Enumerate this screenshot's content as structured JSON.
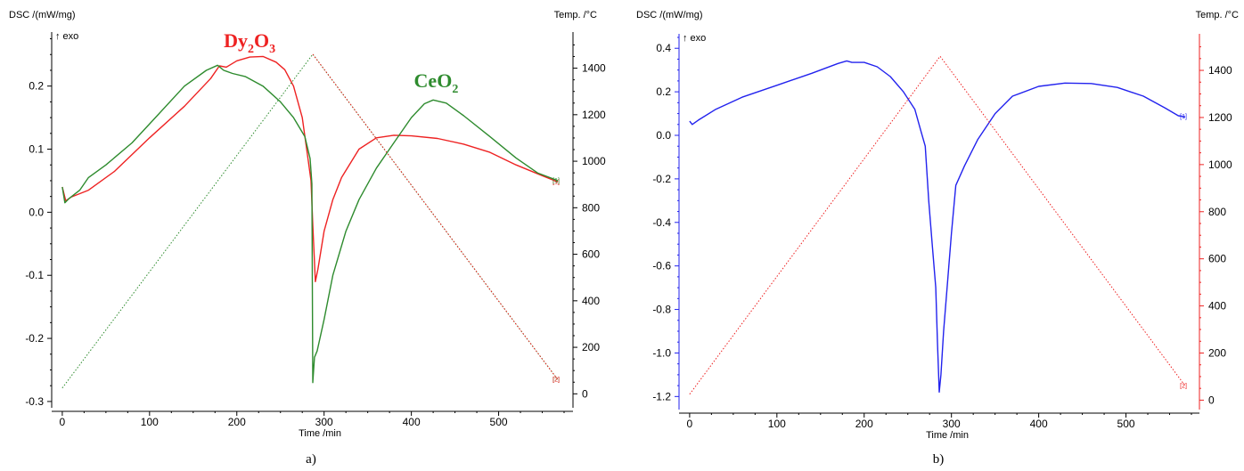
{
  "chart_data": [
    {
      "type": "line",
      "panel_label": "a)",
      "ylabel": "DSC /(mW/mg)",
      "exo_label": "↑ exo",
      "y2label": "Temp. /°C",
      "xlabel": "Time /min",
      "xlim": [
        -5,
        575
      ],
      "ylim": [
        -0.31,
        0.28
      ],
      "y2lim": [
        -60,
        1540
      ],
      "x_ticks": [
        0,
        100,
        200,
        300,
        400,
        500
      ],
      "y_ticks": [
        -0.3,
        -0.2,
        -0.1,
        0.0,
        0.1,
        0.2
      ],
      "y_tick_labels": [
        "-0.3",
        "-0.2",
        "-0.1",
        "0.0",
        "0.1",
        "0.2"
      ],
      "y2_ticks": [
        0,
        200,
        400,
        600,
        800,
        1000,
        1200,
        1400
      ],
      "grid": false,
      "annotations": [
        {
          "base": "Dy",
          "sub1": "2",
          "mid": "O",
          "sub2": "3",
          "color": "#ee2222",
          "x": 185,
          "y": 0.262
        },
        {
          "base": "CeO",
          "sub1": "2",
          "mid": "",
          "sub2": "",
          "color": "#2e8b2e",
          "x": 403,
          "y": 0.198
        }
      ],
      "series": [
        {
          "axis": "y",
          "color": "#ee2222",
          "style": "solid",
          "end_marker": "[1]",
          "points": [
            [
              0,
              0.04
            ],
            [
              4,
              0.018
            ],
            [
              10,
              0.024
            ],
            [
              30,
              0.035
            ],
            [
              60,
              0.065
            ],
            [
              100,
              0.118
            ],
            [
              140,
              0.168
            ],
            [
              170,
              0.212
            ],
            [
              180,
              0.232
            ],
            [
              188,
              0.23
            ],
            [
              200,
              0.24
            ],
            [
              215,
              0.246
            ],
            [
              230,
              0.247
            ],
            [
              245,
              0.238
            ],
            [
              255,
              0.226
            ],
            [
              265,
              0.2
            ],
            [
              275,
              0.15
            ],
            [
              282,
              0.08
            ],
            [
              285,
              0.05
            ],
            [
              287,
              -0.02
            ],
            [
              290,
              -0.11
            ],
            [
              293,
              -0.09
            ],
            [
              300,
              -0.03
            ],
            [
              310,
              0.02
            ],
            [
              320,
              0.055
            ],
            [
              340,
              0.1
            ],
            [
              360,
              0.118
            ],
            [
              380,
              0.122
            ],
            [
              400,
              0.121
            ],
            [
              430,
              0.117
            ],
            [
              460,
              0.108
            ],
            [
              490,
              0.095
            ],
            [
              520,
              0.075
            ],
            [
              550,
              0.058
            ],
            [
              568,
              0.048
            ]
          ]
        },
        {
          "axis": "y",
          "color": "#2e8b2e",
          "style": "solid",
          "end_marker": "[1]",
          "points": [
            [
              0,
              0.04
            ],
            [
              3,
              0.015
            ],
            [
              8,
              0.022
            ],
            [
              20,
              0.035
            ],
            [
              30,
              0.055
            ],
            [
              50,
              0.075
            ],
            [
              80,
              0.11
            ],
            [
              110,
              0.155
            ],
            [
              140,
              0.2
            ],
            [
              165,
              0.225
            ],
            [
              178,
              0.233
            ],
            [
              185,
              0.225
            ],
            [
              195,
              0.22
            ],
            [
              210,
              0.215
            ],
            [
              230,
              0.2
            ],
            [
              250,
              0.175
            ],
            [
              265,
              0.15
            ],
            [
              278,
              0.12
            ],
            [
              284,
              0.085
            ],
            [
              286,
              0.045
            ],
            [
              287,
              -0.27
            ],
            [
              289,
              -0.23
            ],
            [
              292,
              -0.22
            ],
            [
              300,
              -0.17
            ],
            [
              310,
              -0.1
            ],
            [
              325,
              -0.03
            ],
            [
              340,
              0.02
            ],
            [
              360,
              0.07
            ],
            [
              380,
              0.11
            ],
            [
              400,
              0.15
            ],
            [
              415,
              0.172
            ],
            [
              425,
              0.178
            ],
            [
              440,
              0.173
            ],
            [
              460,
              0.153
            ],
            [
              490,
              0.12
            ],
            [
              520,
              0.086
            ],
            [
              545,
              0.062
            ],
            [
              568,
              0.05
            ]
          ]
        },
        {
          "axis": "y2",
          "color": "#2e8b2e",
          "style": "dotted",
          "end_marker": "[2]",
          "points": [
            [
              0,
              25
            ],
            [
              287,
              1460
            ],
            [
              568,
              60
            ]
          ]
        },
        {
          "axis": "y2",
          "color": "#ee2222",
          "style": "dotted",
          "end_marker": "[2]",
          "points": [
            [
              287,
              1460
            ],
            [
              568,
              60
            ]
          ]
        }
      ]
    },
    {
      "type": "line",
      "panel_label": "b)",
      "ylabel": "DSC /(mW/mg)",
      "exo_label": "↑ exo",
      "y2label": "Temp. /°C",
      "xlabel": "Time /min",
      "xlim": [
        -5,
        575
      ],
      "ylim": [
        -1.26,
        0.45
      ],
      "y2lim": [
        -40,
        1540
      ],
      "x_ticks": [
        0,
        100,
        200,
        300,
        400,
        500
      ],
      "y_ticks": [
        -1.2,
        -1.0,
        -0.8,
        -0.6,
        -0.4,
        -0.2,
        0.0,
        0.2,
        0.4
      ],
      "y_tick_labels": [
        "-1.2",
        "-1.0",
        "-0.8",
        "-0.6",
        "-0.4",
        "-0.2",
        "0.0",
        "0.2",
        "0.4"
      ],
      "y2_ticks": [
        0,
        200,
        400,
        600,
        800,
        1000,
        1200,
        1400
      ],
      "y2_color": "#ee2222",
      "y_axis_color": "#2222ee",
      "grid": false,
      "annotations": [],
      "series": [
        {
          "axis": "y",
          "color": "#2222ee",
          "style": "solid",
          "end_marker": "[1]",
          "points": [
            [
              0,
              0.065
            ],
            [
              3,
              0.05
            ],
            [
              10,
              0.07
            ],
            [
              30,
              0.12
            ],
            [
              60,
              0.175
            ],
            [
              100,
              0.23
            ],
            [
              140,
              0.285
            ],
            [
              170,
              0.33
            ],
            [
              180,
              0.342
            ],
            [
              186,
              0.335
            ],
            [
              200,
              0.335
            ],
            [
              215,
              0.315
            ],
            [
              230,
              0.27
            ],
            [
              245,
              0.2
            ],
            [
              258,
              0.12
            ],
            [
              265,
              0.02
            ],
            [
              270,
              -0.05
            ],
            [
              274,
              -0.3
            ],
            [
              278,
              -0.5
            ],
            [
              282,
              -0.7
            ],
            [
              284,
              -0.95
            ],
            [
              286,
              -1.18
            ],
            [
              288,
              -1.1
            ],
            [
              291,
              -0.9
            ],
            [
              296,
              -0.65
            ],
            [
              300,
              -0.45
            ],
            [
              305,
              -0.23
            ],
            [
              315,
              -0.14
            ],
            [
              330,
              -0.02
            ],
            [
              350,
              0.1
            ],
            [
              370,
              0.18
            ],
            [
              400,
              0.225
            ],
            [
              430,
              0.24
            ],
            [
              460,
              0.238
            ],
            [
              490,
              0.22
            ],
            [
              520,
              0.18
            ],
            [
              545,
              0.125
            ],
            [
              560,
              0.09
            ],
            [
              568,
              0.085
            ]
          ]
        },
        {
          "axis": "y2",
          "color": "#ee2222",
          "style": "dotted",
          "end_marker": "[2]",
          "points": [
            [
              0,
              25
            ],
            [
              287,
              1460
            ],
            [
              568,
              60
            ]
          ]
        }
      ]
    }
  ]
}
